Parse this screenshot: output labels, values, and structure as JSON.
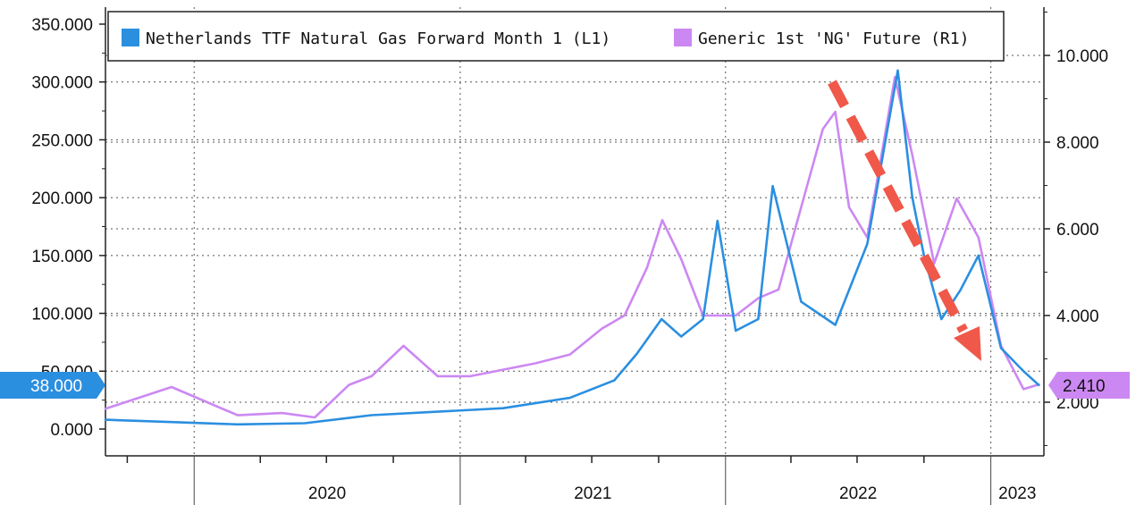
{
  "chart_data": {
    "type": "line",
    "x_axis": {
      "start": "2019-09-01",
      "end": "2023-03-15",
      "year_labels": [
        "2020",
        "2021",
        "2022",
        "2023"
      ]
    },
    "left_axis": {
      "ticks": [
        0,
        50,
        100,
        150,
        200,
        250,
        300,
        350
      ],
      "tick_labels": [
        "0.000",
        "50.000",
        "100.000",
        "150.000",
        "200.000",
        "250.000",
        "300.000",
        "350.000"
      ]
    },
    "right_axis": {
      "ticks": [
        2,
        4,
        6,
        8,
        10
      ],
      "tick_labels": [
        "2.000",
        "4.000",
        "6.000",
        "8.000",
        "10.000"
      ]
    },
    "grid": true,
    "legend": {
      "placement": "top"
    },
    "series": [
      {
        "name": "Netherlands TTF Natural Gas Forward Month 1 (L1)",
        "axis": "left",
        "color": "#2b8fe0",
        "last_value_label": "38.000",
        "x": [
          "2019-09-01",
          "2019-12-01",
          "2020-03-01",
          "2020-06-01",
          "2020-09-01",
          "2020-12-01",
          "2021-03-01",
          "2021-06-01",
          "2021-08-01",
          "2021-09-01",
          "2021-10-05",
          "2021-11-01",
          "2021-12-01",
          "2021-12-21",
          "2022-01-15",
          "2022-02-15",
          "2022-03-07",
          "2022-04-15",
          "2022-06-01",
          "2022-07-15",
          "2022-08-26",
          "2022-09-15",
          "2022-10-01",
          "2022-10-25",
          "2022-11-20",
          "2022-12-15",
          "2023-01-15",
          "2023-02-15",
          "2023-03-08"
        ],
        "y": [
          8,
          6,
          4,
          5,
          12,
          15,
          18,
          27,
          42,
          65,
          95,
          80,
          95,
          180,
          85,
          95,
          210,
          110,
          90,
          160,
          310,
          200,
          150,
          95,
          120,
          150,
          70,
          50,
          38
        ]
      },
      {
        "name": "Generic 1st 'NG' Future (R1)",
        "axis": "right",
        "color": "#cc88f2",
        "last_value_label": "2.410",
        "x": [
          "2019-09-01",
          "2019-12-01",
          "2020-03-01",
          "2020-05-01",
          "2020-06-15",
          "2020-08-01",
          "2020-09-01",
          "2020-10-15",
          "2020-12-01",
          "2021-01-15",
          "2021-03-01",
          "2021-04-15",
          "2021-06-01",
          "2021-07-15",
          "2021-08-15",
          "2021-09-15",
          "2021-10-06",
          "2021-11-01",
          "2021-12-01",
          "2022-01-15",
          "2022-02-15",
          "2022-03-15",
          "2022-04-15",
          "2022-05-15",
          "2022-06-01",
          "2022-06-20",
          "2022-07-15",
          "2022-08-22",
          "2022-09-15",
          "2022-10-15",
          "2022-11-15",
          "2022-12-15",
          "2023-01-15",
          "2023-02-15",
          "2023-03-08"
        ],
        "y": [
          1.85,
          2.35,
          1.7,
          1.75,
          1.65,
          2.4,
          2.6,
          3.3,
          2.6,
          2.6,
          2.75,
          2.9,
          3.1,
          3.7,
          4.0,
          5.1,
          6.2,
          5.3,
          4.0,
          4.0,
          4.4,
          4.6,
          6.5,
          8.3,
          8.7,
          6.5,
          5.8,
          9.5,
          7.7,
          5.2,
          6.7,
          5.8,
          3.3,
          2.3,
          2.41
        ]
      }
    ],
    "annotation": {
      "type": "dashed-arrow",
      "color": "#f0584a",
      "direction": "downward trend"
    }
  }
}
